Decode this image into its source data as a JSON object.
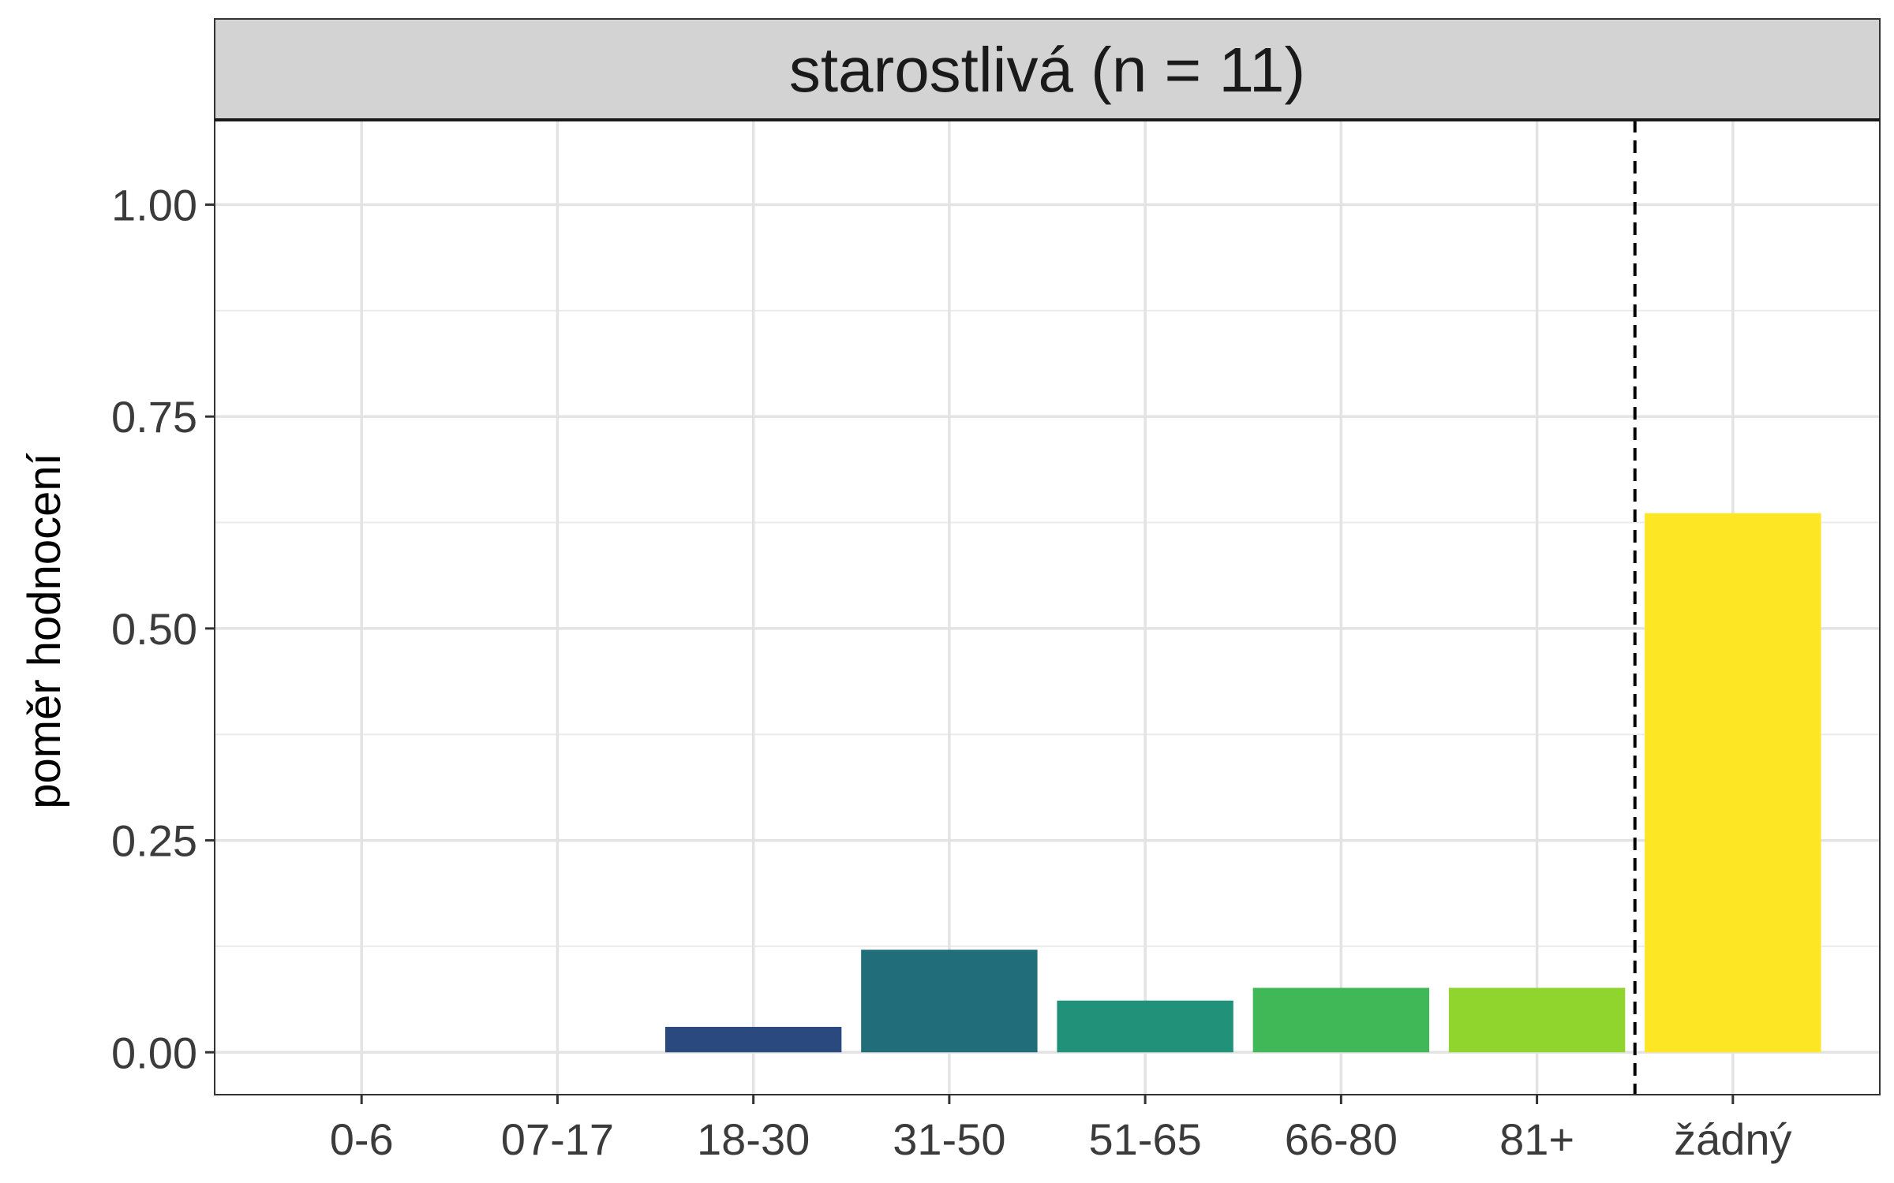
{
  "chart_data": {
    "type": "bar",
    "panel_title": "starostlivá (n = 11)",
    "ylabel": "poměr hodnocení",
    "xlabel": "",
    "categories": [
      "0-6",
      "07-17",
      "18-30",
      "31-50",
      "51-65",
      "66-80",
      "81+",
      "žádný"
    ],
    "values": [
      0.0,
      0.0,
      0.03,
      0.121,
      0.061,
      0.076,
      0.076,
      0.636
    ],
    "colors": [
      "#440154",
      "#46337e",
      "#2a4a7f",
      "#216e7a",
      "#21917a",
      "#41b858",
      "#90d42e",
      "#fde725"
    ],
    "ylim": [
      -0.05,
      1.1
    ],
    "yticks": [
      0.0,
      0.25,
      0.5,
      0.75,
      1.0
    ],
    "ytick_labels": [
      "0.00",
      "0.25",
      "0.50",
      "0.75",
      "1.00"
    ],
    "reference_line": {
      "style": "dashed",
      "between": [
        "81+",
        "žádný"
      ]
    },
    "grid": true,
    "legend": "none"
  }
}
